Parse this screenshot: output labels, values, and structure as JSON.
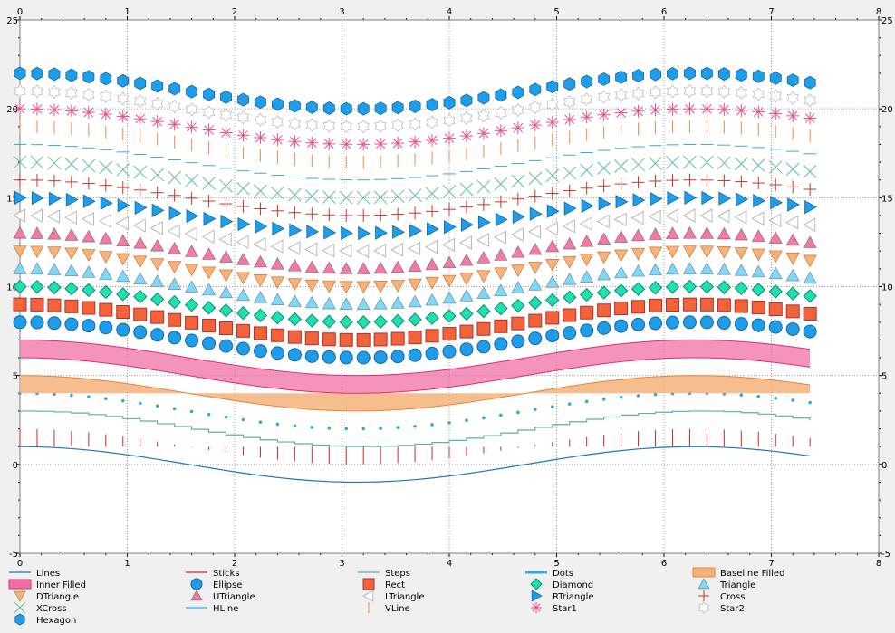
{
  "chart_data": {
    "type": "scatter",
    "xlim": [
      0,
      8
    ],
    "ylim": [
      -5,
      25
    ],
    "x_ticks": [
      "0",
      "1",
      "2",
      "3",
      "4",
      "5",
      "6",
      "7",
      "8"
    ],
    "y_ticks": [
      "-5",
      "0",
      "5",
      "10",
      "15",
      "20",
      "25"
    ],
    "grid": true,
    "legend_placement": "bottom",
    "x_samples": [
      0.0,
      0.16,
      0.32,
      0.48,
      0.64,
      0.8,
      0.96,
      1.12,
      1.28,
      1.44,
      1.6,
      1.76,
      1.92,
      2.08,
      2.24,
      2.4,
      2.56,
      2.72,
      2.88,
      3.04,
      3.2,
      3.36,
      3.52,
      3.68,
      3.84,
      4.0,
      4.16,
      4.32,
      4.48,
      4.64,
      4.8,
      4.96,
      5.12,
      5.28,
      5.44,
      5.6,
      5.76,
      5.92,
      6.08,
      6.24,
      6.4,
      6.56,
      6.72,
      6.88,
      7.04,
      7.2,
      7.36
    ],
    "curve": "cos(x/2 pi)-ish wave, amplitude 1, value = offset + cos(x)",
    "series": [
      {
        "name": "Lines",
        "style": "line",
        "offset": 0,
        "color": "#1f77b4"
      },
      {
        "name": "Sticks",
        "style": "sticks",
        "offset": 1,
        "color": "#d62728"
      },
      {
        "name": "Steps",
        "style": "steps",
        "offset": 2,
        "color": "#5fb39a"
      },
      {
        "name": "Dots",
        "style": "dots",
        "offset": 3,
        "color": "#33a8e0"
      },
      {
        "name": "Baseline Filled",
        "style": "baseline-filled",
        "offset": 4,
        "color": "#f5b27a"
      },
      {
        "name": "Inner Filled",
        "style": "inner-filled",
        "offset": 5,
        "color": "#f06fa5"
      },
      {
        "name": "Ellipse",
        "style": "ellipse",
        "offset": 7,
        "color": "#1f9de8"
      },
      {
        "name": "Rect",
        "style": "rect",
        "offset": 8,
        "color": "#f4623a"
      },
      {
        "name": "Diamond",
        "style": "diamond",
        "offset": 9,
        "color": "#1ee0b0"
      },
      {
        "name": "Triangle",
        "style": "triangle",
        "offset": 10,
        "color": "#7fd8f8"
      },
      {
        "name": "DTriangle",
        "style": "dtriangle",
        "offset": 11,
        "color": "#f7b37a"
      },
      {
        "name": "UTriangle",
        "style": "utriangle",
        "offset": 12,
        "color": "#f27aa7"
      },
      {
        "name": "LTriangle",
        "style": "ltriangle",
        "offset": 13,
        "color": "#dcdcdc"
      },
      {
        "name": "RTriangle",
        "style": "rtriangle",
        "offset": 14,
        "color": "#1e9ee8"
      },
      {
        "name": "Cross",
        "style": "cross",
        "offset": 15,
        "color": "#c0392b"
      },
      {
        "name": "XCross",
        "style": "xcross",
        "offset": 16,
        "color": "#5fbfa0"
      },
      {
        "name": "HLine",
        "style": "hline",
        "offset": 17,
        "color": "#3aa9dd"
      },
      {
        "name": "VLine",
        "style": "vline",
        "offset": 18,
        "color": "#f28a3a"
      },
      {
        "name": "Star1",
        "style": "star1",
        "offset": 19,
        "color": "#e8508a"
      },
      {
        "name": "Star2",
        "style": "star2",
        "offset": 20,
        "color": "#c8c8c8"
      },
      {
        "name": "Hexagon",
        "style": "hexagon",
        "offset": 21,
        "color": "#1e9ee8"
      }
    ],
    "legend": [
      [
        "Lines",
        "Sticks",
        "Steps",
        "Dots",
        "Baseline Filled"
      ],
      [
        "Inner Filled",
        "Ellipse",
        "Rect",
        "Diamond",
        "Triangle"
      ],
      [
        "DTriangle",
        "UTriangle",
        "LTriangle",
        "RTriangle",
        "Cross"
      ],
      [
        "XCross",
        "HLine",
        "VLine",
        "Star1",
        "Star2"
      ],
      [
        "Hexagon"
      ]
    ]
  }
}
